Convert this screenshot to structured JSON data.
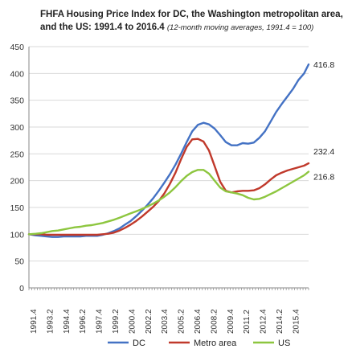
{
  "chart_data": {
    "type": "line",
    "title": "FHFA Housing Price Index for DC, the Washington metropolitan area,",
    "title_line2": "and the US: 1991.4  to 2016.4",
    "subtitle": "(12-month moving  averages, 1991.4 = 100)",
    "ylim": [
      0,
      450
    ],
    "y_ticks": [
      0,
      50,
      100,
      150,
      200,
      250,
      300,
      350,
      400,
      450
    ],
    "x_range": [
      1991.4,
      2016.4
    ],
    "x_tick_labels": [
      "1991.4",
      "1993.2",
      "1994.4",
      "1996.2",
      "1997.4",
      "1999.2",
      "2000.4",
      "2002.2",
      "2003.4",
      "2005.2",
      "2006.4",
      "2008.2",
      "2009.4",
      "2011.2",
      "2012.4",
      "2014.2",
      "2015.4"
    ],
    "grid": "horizontal",
    "legend_position": "bottom",
    "series": [
      {
        "name": "DC",
        "color": "#4472c4",
        "end_label": "416.8",
        "x": [
          1991.4,
          1992.0,
          1992.5,
          1993.0,
          1993.5,
          1994.0,
          1994.5,
          1995.0,
          1995.5,
          1996.0,
          1996.5,
          1997.0,
          1997.5,
          1998.0,
          1998.5,
          1999.0,
          1999.5,
          2000.0,
          2000.5,
          2001.0,
          2001.5,
          2002.0,
          2002.5,
          2003.0,
          2003.5,
          2004.0,
          2004.5,
          2005.0,
          2005.5,
          2006.0,
          2006.5,
          2007.0,
          2007.5,
          2008.0,
          2008.5,
          2009.0,
          2009.5,
          2010.0,
          2010.5,
          2011.0,
          2011.5,
          2012.0,
          2012.5,
          2013.0,
          2013.5,
          2014.0,
          2014.5,
          2015.0,
          2015.5,
          2016.0,
          2016.4
        ],
        "y": [
          100,
          98,
          97,
          96,
          95,
          95,
          96,
          96,
          96,
          96,
          97,
          97,
          97,
          99,
          102,
          106,
          111,
          118,
          125,
          134,
          144,
          155,
          167,
          181,
          196,
          212,
          230,
          250,
          272,
          292,
          304,
          308,
          305,
          297,
          285,
          272,
          266,
          266,
          270,
          269,
          271,
          280,
          292,
          310,
          328,
          343,
          357,
          371,
          388,
          400,
          416.8
        ]
      },
      {
        "name": "Metro area",
        "color": "#c0392b",
        "end_label": "232.4",
        "x": [
          1991.4,
          1992.0,
          1992.5,
          1993.0,
          1993.5,
          1994.0,
          1994.5,
          1995.0,
          1995.5,
          1996.0,
          1996.5,
          1997.0,
          1997.5,
          1998.0,
          1998.5,
          1999.0,
          1999.5,
          2000.0,
          2000.5,
          2001.0,
          2001.5,
          2002.0,
          2002.5,
          2003.0,
          2003.5,
          2004.0,
          2004.5,
          2005.0,
          2005.5,
          2006.0,
          2006.5,
          2007.0,
          2007.5,
          2008.0,
          2008.5,
          2009.0,
          2009.5,
          2010.0,
          2010.5,
          2011.0,
          2011.5,
          2012.0,
          2012.5,
          2013.0,
          2013.5,
          2014.0,
          2014.5,
          2015.0,
          2015.5,
          2016.0,
          2016.4
        ],
        "y": [
          100,
          100,
          100,
          99,
          99,
          99,
          99,
          99,
          99,
          99,
          99,
          99,
          99,
          100,
          101,
          103,
          107,
          112,
          118,
          125,
          133,
          142,
          151,
          162,
          176,
          194,
          215,
          240,
          263,
          277,
          278,
          273,
          256,
          227,
          198,
          181,
          178,
          180,
          181,
          181,
          182,
          186,
          193,
          202,
          210,
          215,
          219,
          222,
          225,
          228,
          232.4
        ]
      },
      {
        "name": "US",
        "color": "#8dc63f",
        "end_label": "216.8",
        "x": [
          1991.4,
          1992.0,
          1992.5,
          1993.0,
          1993.5,
          1994.0,
          1994.5,
          1995.0,
          1995.5,
          1996.0,
          1996.5,
          1997.0,
          1997.5,
          1998.0,
          1998.5,
          1999.0,
          1999.5,
          2000.0,
          2000.5,
          2001.0,
          2001.5,
          2002.0,
          2002.5,
          2003.0,
          2003.5,
          2004.0,
          2004.5,
          2005.0,
          2005.5,
          2006.0,
          2006.5,
          2007.0,
          2007.5,
          2008.0,
          2008.5,
          2009.0,
          2009.5,
          2010.0,
          2010.5,
          2011.0,
          2011.5,
          2012.0,
          2012.5,
          2013.0,
          2013.5,
          2014.0,
          2014.5,
          2015.0,
          2015.5,
          2016.0,
          2016.4
        ],
        "y": [
          100,
          101,
          102,
          104,
          106,
          107,
          109,
          111,
          113,
          114,
          116,
          117,
          119,
          121,
          124,
          127,
          131,
          135,
          139,
          143,
          147,
          152,
          157,
          163,
          170,
          178,
          188,
          199,
          209,
          216,
          220,
          220,
          213,
          200,
          187,
          180,
          178,
          176,
          173,
          168,
          165,
          166,
          170,
          175,
          180,
          186,
          192,
          198,
          204,
          210,
          216.8
        ]
      }
    ]
  }
}
